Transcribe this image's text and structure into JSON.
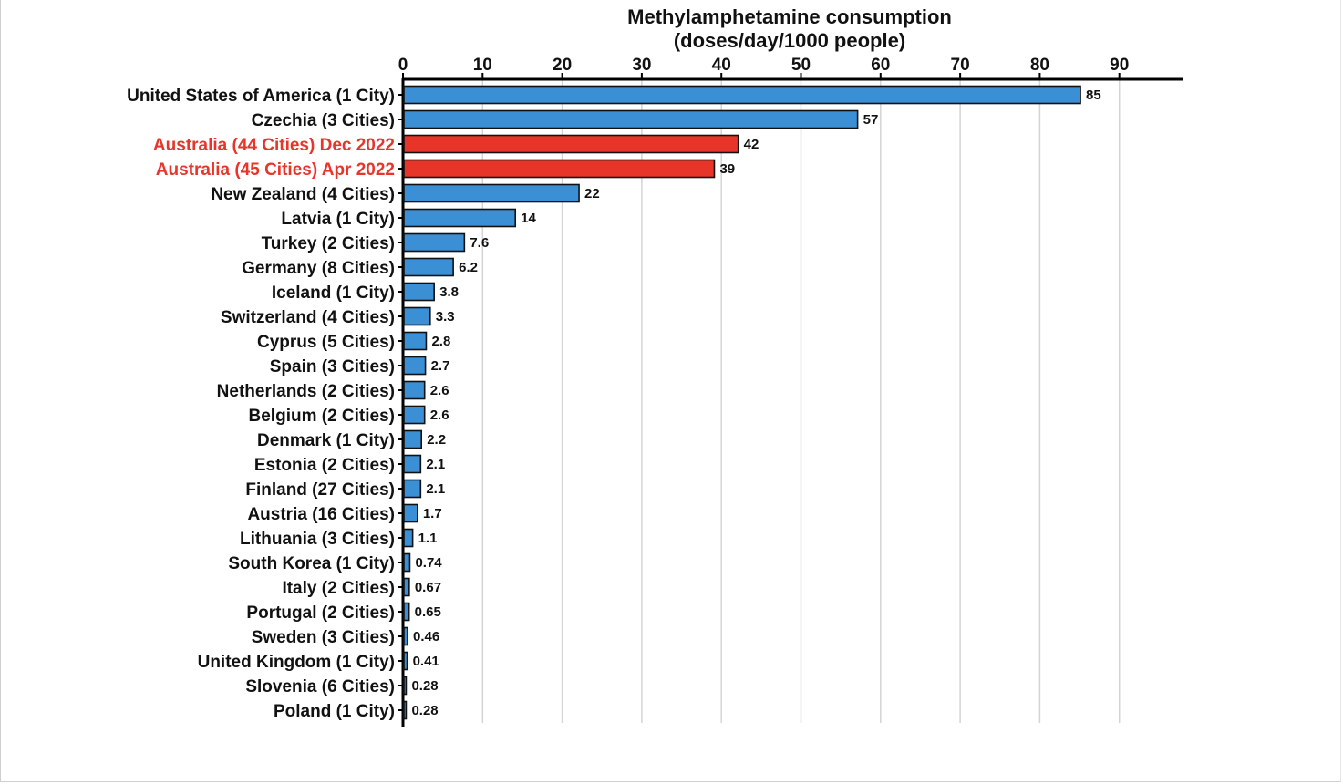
{
  "chart_data": {
    "type": "bar",
    "orientation": "horizontal",
    "title": [
      "Methylamphetamine consumption",
      "(doses/day/1000 people)"
    ],
    "xlabel": "",
    "ylabel": "",
    "xlim": [
      0,
      97
    ],
    "ticks": [
      0,
      10,
      20,
      30,
      40,
      50,
      60,
      70,
      80,
      90
    ],
    "tick_labels": [
      "0",
      "10",
      "20",
      "30",
      "40",
      "50",
      "60",
      "70",
      "80",
      "90"
    ],
    "grid": "vertical",
    "axis_position": "top",
    "colors": {
      "default": "#3b8fd4",
      "highlight": "#e8352a",
      "highlight_text": "#e8352a",
      "text": "#111111",
      "grid": "#d4d4d4"
    },
    "categories": [
      "United States of America (1 City)",
      "Czechia (3 Cities)",
      "Australia (44 Cities) Dec 2022",
      "Australia (45 Cities) Apr 2022",
      "New Zealand (4 Cities)",
      "Latvia (1 City)",
      "Turkey (2 Cities)",
      "Germany (8 Cities)",
      "Iceland (1 City)",
      "Switzerland (4 Cities)",
      "Cyprus (5 Cities)",
      "Spain (3 Cities)",
      "Netherlands (2 Cities)",
      "Belgium (2 Cities)",
      "Denmark (1 City)",
      "Estonia (2 Cities)",
      "Finland (27 Cities)",
      "Austria (16 Cities)",
      "Lithuania (3 Cities)",
      "South Korea (1 City)",
      "Italy (2 Cities)",
      "Portugal (2 Cities)",
      "Sweden (3 Cities)",
      "United Kingdom (1 City)",
      "Slovenia (6 Cities)",
      "Poland (1 City)"
    ],
    "values": [
      85,
      57,
      42,
      39,
      22,
      14,
      7.6,
      6.2,
      3.8,
      3.3,
      2.8,
      2.7,
      2.6,
      2.6,
      2.2,
      2.1,
      2.1,
      1.7,
      1.1,
      0.74,
      0.67,
      0.65,
      0.46,
      0.41,
      0.28,
      0.28
    ],
    "value_labels": [
      "85",
      "57",
      "42",
      "39",
      "22",
      "14",
      "7.6",
      "6.2",
      "3.8",
      "3.3",
      "2.8",
      "2.7",
      "2.6",
      "2.6",
      "2.2",
      "2.1",
      "2.1",
      "1.7",
      "1.1",
      "0.74",
      "0.67",
      "0.65",
      "0.46",
      "0.41",
      "0.28",
      "0.28"
    ],
    "highlighted": [
      false,
      false,
      true,
      true,
      false,
      false,
      false,
      false,
      false,
      false,
      false,
      false,
      false,
      false,
      false,
      false,
      false,
      false,
      false,
      false,
      false,
      false,
      false,
      false,
      false,
      false
    ]
  }
}
